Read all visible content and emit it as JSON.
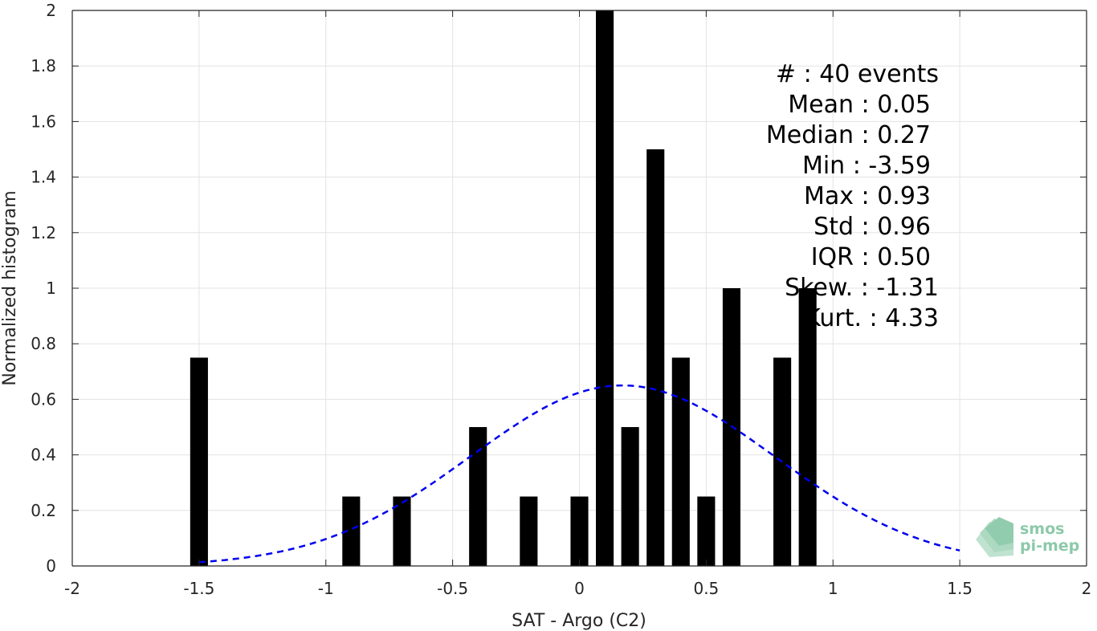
{
  "chart_data": {
    "type": "bar",
    "xlabel": "SAT - Argo (C2)",
    "ylabel": "Normalized histogram",
    "xlim": [
      -2,
      2
    ],
    "ylim": [
      0,
      2
    ],
    "grid": true,
    "x_ticks": [
      "-2",
      "-1.5",
      "-1",
      "-0.5",
      "0",
      "0.5",
      "1",
      "1.5",
      "2"
    ],
    "y_ticks": [
      "0",
      "0.2",
      "0.4",
      "0.6",
      "0.8",
      "1",
      "1.2",
      "1.4",
      "1.6",
      "1.8",
      "2"
    ],
    "bar_width": 0.07,
    "bars": [
      {
        "x": -1.5,
        "y": 0.75
      },
      {
        "x": -0.9,
        "y": 0.25
      },
      {
        "x": -0.7,
        "y": 0.25
      },
      {
        "x": -0.4,
        "y": 0.5
      },
      {
        "x": -0.2,
        "y": 0.25
      },
      {
        "x": 0.0,
        "y": 0.25
      },
      {
        "x": 0.1,
        "y": 2.0
      },
      {
        "x": 0.2,
        "y": 0.5
      },
      {
        "x": 0.3,
        "y": 1.5
      },
      {
        "x": 0.4,
        "y": 0.75
      },
      {
        "x": 0.5,
        "y": 0.25
      },
      {
        "x": 0.6,
        "y": 1.0
      },
      {
        "x": 0.8,
        "y": 0.75
      },
      {
        "x": 0.9,
        "y": 1.0
      }
    ],
    "bar_color": "#000000",
    "fit_curve": {
      "type": "gaussian",
      "style": "dashed",
      "color": "#0000ee",
      "peak_x": 0.17,
      "peak_y": 0.65,
      "sigma": 0.6,
      "x_range": [
        -1.5,
        1.5
      ]
    },
    "stats": [
      "#  : 40 events",
      "Mean : 0.05",
      "Median : 0.27",
      "Min : -3.59",
      "Max : 0.93",
      "Std : 0.96",
      "IQR : 0.50",
      "Skew. : -1.31",
      "Kurt. : 4.33"
    ]
  },
  "logo": {
    "line1": "smos",
    "line2": "pi-mep",
    "color": "#8cc9a9"
  }
}
